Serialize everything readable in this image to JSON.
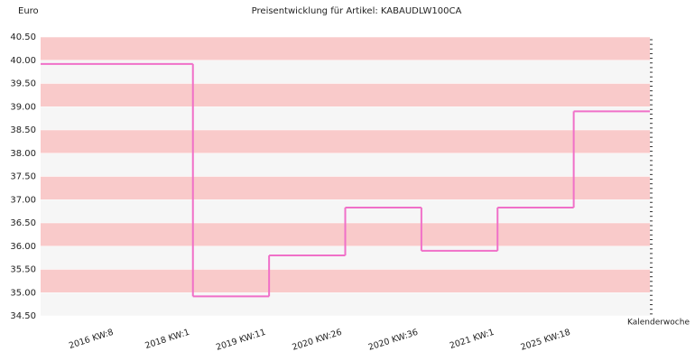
{
  "chart_data": {
    "type": "step",
    "title": "Preisentwicklung für Artikel: KABAUDLW100CA",
    "y_label": "Euro",
    "x_label": "Kalenderwoche",
    "categories": [
      "2016 KW:8",
      "2018 KW:1",
      "2019 KW:11",
      "2020 KW:26",
      "2020 KW:36",
      "2021 KW:1",
      "2025 KW:18"
    ],
    "values": [
      39.92,
      34.92,
      35.8,
      36.83,
      35.9,
      36.83,
      38.9
    ],
    "color": "#f070c8",
    "band_colors": [
      "#f9caca",
      "#f6f6f6"
    ],
    "ylim": [
      34.5,
      40.5
    ],
    "yticks": [
      {
        "value": 34.5,
        "label": "34.50"
      },
      {
        "value": 35,
        "label": "35.00"
      },
      {
        "value": 35.5,
        "label": "35.50"
      },
      {
        "value": 36,
        "label": "36.00"
      },
      {
        "value": 36.5,
        "label": "36.50"
      },
      {
        "value": 37,
        "label": "37.00"
      },
      {
        "value": 37.5,
        "label": "37.50"
      },
      {
        "value": 38,
        "label": "38.00"
      },
      {
        "value": 38.5,
        "label": "38.50"
      },
      {
        "value": 39,
        "label": "39.00"
      },
      {
        "value": 39.5,
        "label": "39.50"
      },
      {
        "value": 40,
        "label": "40.00"
      },
      {
        "value": 40.5,
        "label": "40.50"
      }
    ],
    "grid": true
  }
}
